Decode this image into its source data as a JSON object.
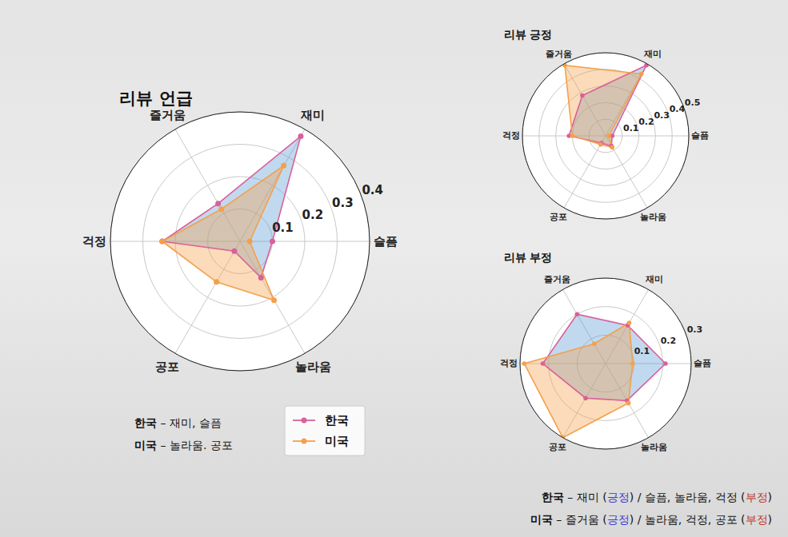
{
  "chart_data": [
    {
      "type": "radar",
      "title": "리뷰 언급",
      "categories": [
        "슬픔",
        "재미",
        "즐거움",
        "걱정",
        "공포",
        "놀라움"
      ],
      "series": [
        {
          "name": "한국",
          "color": "#d9609a",
          "marker": "circle",
          "values": [
            0.1,
            0.375,
            0.135,
            0.24,
            0.035,
            0.13
          ]
        },
        {
          "name": "미국",
          "color": "#f4a04a",
          "marker": "circle",
          "values": [
            0.03,
            0.27,
            0.115,
            0.24,
            0.145,
            0.21
          ]
        }
      ],
      "ylim": [
        0,
        0.4
      ],
      "yticks": [
        0.1,
        0.2,
        0.3,
        0.4
      ],
      "grid": true,
      "legend": "lower right",
      "annotations": [
        "한국 – 재미, 슬픔",
        "미국 – 놀라움. 공포"
      ]
    },
    {
      "type": "radar",
      "title": "리뷰 긍정",
      "categories": [
        "슬픔",
        "재미",
        "즐거움",
        "걱정",
        "공포",
        "놀라움"
      ],
      "series": [
        {
          "name": "한국",
          "color": "#d9609a",
          "marker": "circle",
          "values": [
            0.04,
            0.49,
            0.28,
            0.22,
            0.05,
            0.07
          ]
        },
        {
          "name": "미국",
          "color": "#f4a04a",
          "marker": "circle",
          "values": [
            0.02,
            0.43,
            0.49,
            0.2,
            0.06,
            0.08
          ]
        }
      ],
      "ylim": [
        0,
        0.5
      ],
      "yticks": [
        0.1,
        0.2,
        0.3,
        0.4,
        0.5
      ],
      "grid": true
    },
    {
      "type": "radar",
      "title": "리뷰 부정",
      "categories": [
        "슬픔",
        "재미",
        "즐거움",
        "걱정",
        "공포",
        "놀라움"
      ],
      "series": [
        {
          "name": "한국",
          "color": "#d9609a",
          "marker": "circle",
          "values": [
            0.21,
            0.155,
            0.2,
            0.22,
            0.14,
            0.15
          ]
        },
        {
          "name": "미국",
          "color": "#f4a04a",
          "marker": "circle",
          "values": [
            0.095,
            0.165,
            0.08,
            0.285,
            0.3,
            0.16
          ]
        }
      ],
      "ylim": [
        0,
        0.3
      ],
      "yticks": [
        0.1,
        0.2,
        0.3
      ],
      "grid": true,
      "annotations": [
        {
          "segments": [
            "한국",
            " – 재미 (",
            "긍정",
            ") / 슬픔, 놀라움, 걱정 (",
            "부정",
            ")"
          ],
          "colors": [
            null,
            null,
            "#3a3ad0",
            null,
            "#c0392b",
            null
          ]
        },
        {
          "segments": [
            "미국",
            " – 즐거움 (",
            "긍정",
            ") / 놀라움, 걱정, 공포 (",
            "부정",
            ")"
          ],
          "colors": [
            null,
            null,
            "#3a3ad0",
            null,
            "#c0392b",
            null
          ]
        }
      ]
    }
  ]
}
